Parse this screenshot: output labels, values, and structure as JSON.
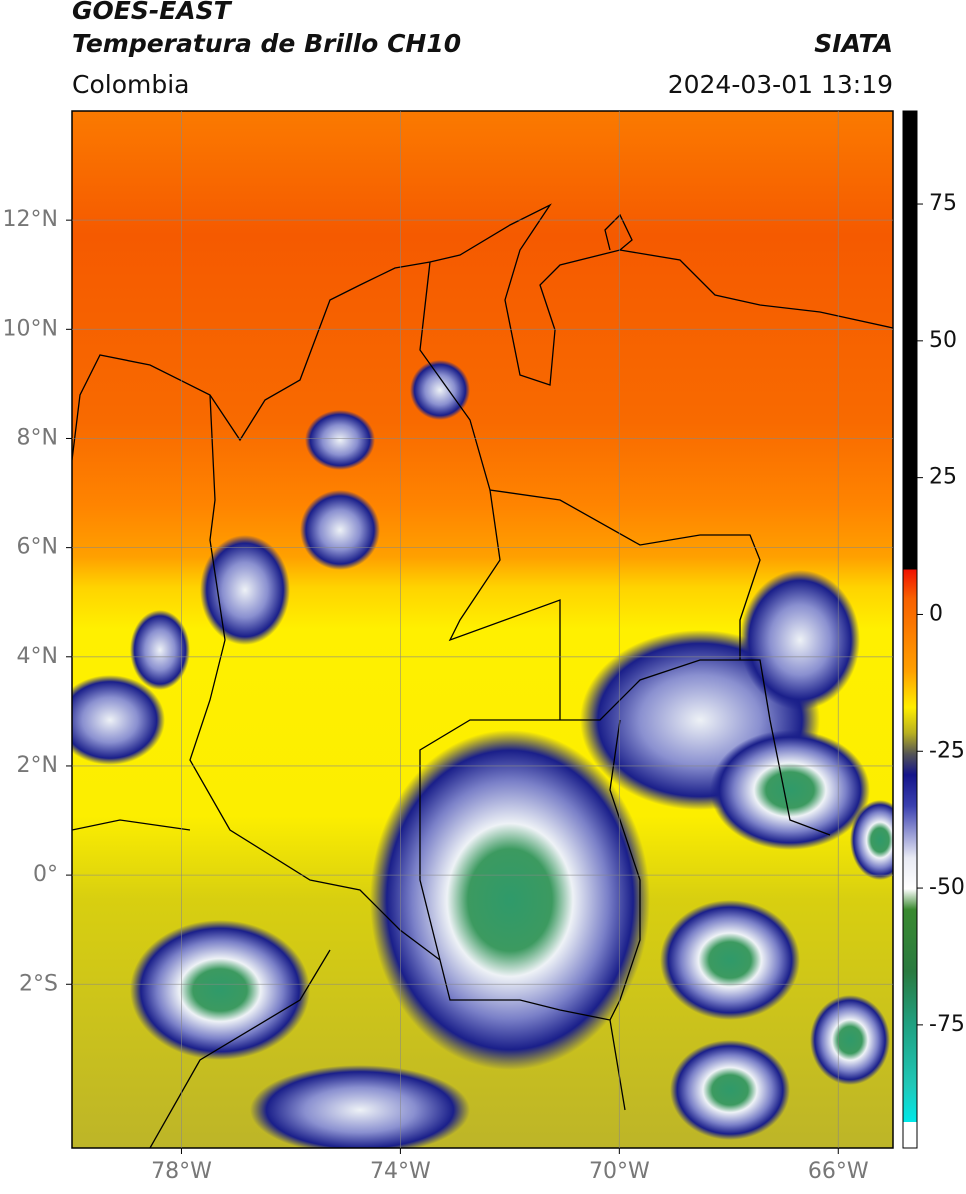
{
  "header": {
    "title": "GOES-EAST",
    "subtitle": "Temperatura de Brillo CH10",
    "source": "SIATA",
    "region": "Colombia",
    "datetime": "2024-03-01 13:19"
  },
  "map": {
    "xlim": [
      -80,
      -65
    ],
    "ylim": [
      -5,
      14
    ],
    "xticks": [
      {
        "value": -78,
        "label": "78°W"
      },
      {
        "value": -74,
        "label": "74°W"
      },
      {
        "value": -70,
        "label": "70°W"
      },
      {
        "value": -66,
        "label": "66°W"
      }
    ],
    "yticks": [
      {
        "value": 12,
        "label": "12°N"
      },
      {
        "value": 10,
        "label": "10°N"
      },
      {
        "value": 8,
        "label": "8°N"
      },
      {
        "value": 6,
        "label": "6°N"
      },
      {
        "value": 4,
        "label": "4°N"
      },
      {
        "value": 2,
        "label": "2°N"
      },
      {
        "value": 0,
        "label": "0°"
      },
      {
        "value": -2,
        "label": "2°S"
      }
    ],
    "grid": true
  },
  "colorbar": {
    "ylim": [
      -97.5,
      92
    ],
    "yticks": [
      75,
      50,
      25,
      0,
      -25,
      -50,
      -75
    ]
  }
}
